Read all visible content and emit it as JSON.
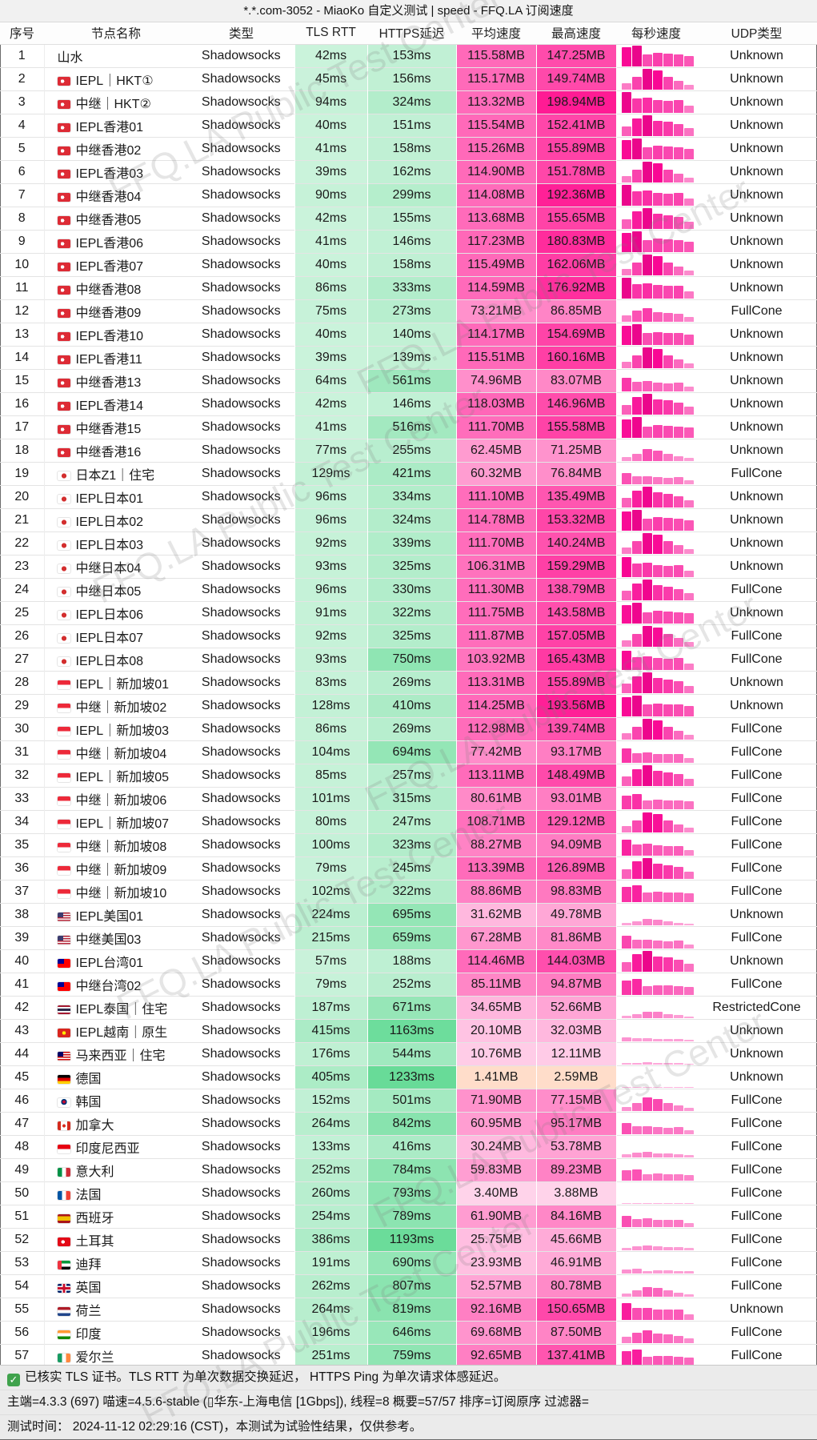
{
  "window": {
    "title": "*.*.com-3052 - MiaoKo 自定义测试 | speed - FFQ.LA 订阅速度"
  },
  "watermark": {
    "text": "FFQ.LA Public Test Center"
  },
  "table": {
    "headers": [
      "序号",
      "节点名称",
      "类型",
      "TLS RTT",
      "HTTPS延迟",
      "平均速度",
      "最高速度",
      "每秒速度",
      "UDP类型"
    ],
    "rows": [
      {
        "num": "1",
        "flag": "",
        "name": "山水",
        "type": "Shadowsocks",
        "tls": "42ms",
        "https": "153ms",
        "avg": "115.58MB",
        "max": "147.25MB",
        "udp": "Unknown"
      },
      {
        "num": "2",
        "flag": "hk",
        "name": "IEPL｜HKT①",
        "type": "Shadowsocks",
        "tls": "45ms",
        "https": "156ms",
        "avg": "115.17MB",
        "max": "149.74MB",
        "udp": "Unknown"
      },
      {
        "num": "3",
        "flag": "hk",
        "name": "中继｜HKT②",
        "type": "Shadowsocks",
        "tls": "94ms",
        "https": "324ms",
        "avg": "113.32MB",
        "max": "198.94MB",
        "udp": "Unknown"
      },
      {
        "num": "4",
        "flag": "hk",
        "name": "IEPL香港01",
        "type": "Shadowsocks",
        "tls": "40ms",
        "https": "151ms",
        "avg": "115.54MB",
        "max": "152.41MB",
        "udp": "Unknown"
      },
      {
        "num": "5",
        "flag": "hk",
        "name": "中继香港02",
        "type": "Shadowsocks",
        "tls": "41ms",
        "https": "158ms",
        "avg": "115.26MB",
        "max": "155.89MB",
        "udp": "Unknown"
      },
      {
        "num": "6",
        "flag": "hk",
        "name": "IEPL香港03",
        "type": "Shadowsocks",
        "tls": "39ms",
        "https": "162ms",
        "avg": "114.90MB",
        "max": "151.78MB",
        "udp": "Unknown"
      },
      {
        "num": "7",
        "flag": "hk",
        "name": "中继香港04",
        "type": "Shadowsocks",
        "tls": "90ms",
        "https": "299ms",
        "avg": "114.08MB",
        "max": "192.36MB",
        "udp": "Unknown"
      },
      {
        "num": "8",
        "flag": "hk",
        "name": "中继香港05",
        "type": "Shadowsocks",
        "tls": "42ms",
        "https": "155ms",
        "avg": "113.68MB",
        "max": "155.65MB",
        "udp": "Unknown"
      },
      {
        "num": "9",
        "flag": "hk",
        "name": "IEPL香港06",
        "type": "Shadowsocks",
        "tls": "41ms",
        "https": "146ms",
        "avg": "117.23MB",
        "max": "180.83MB",
        "udp": "Unknown"
      },
      {
        "num": "10",
        "flag": "hk",
        "name": "IEPL香港07",
        "type": "Shadowsocks",
        "tls": "40ms",
        "https": "158ms",
        "avg": "115.49MB",
        "max": "162.06MB",
        "udp": "Unknown"
      },
      {
        "num": "11",
        "flag": "hk",
        "name": "中继香港08",
        "type": "Shadowsocks",
        "tls": "86ms",
        "https": "333ms",
        "avg": "114.59MB",
        "max": "176.92MB",
        "udp": "Unknown"
      },
      {
        "num": "12",
        "flag": "hk",
        "name": "中继香港09",
        "type": "Shadowsocks",
        "tls": "75ms",
        "https": "273ms",
        "avg": "73.21MB",
        "max": "86.85MB",
        "udp": "FullCone"
      },
      {
        "num": "13",
        "flag": "hk",
        "name": "IEPL香港10",
        "type": "Shadowsocks",
        "tls": "40ms",
        "https": "140ms",
        "avg": "114.17MB",
        "max": "154.69MB",
        "udp": "Unknown"
      },
      {
        "num": "14",
        "flag": "hk",
        "name": "IEPL香港11",
        "type": "Shadowsocks",
        "tls": "39ms",
        "https": "139ms",
        "avg": "115.51MB",
        "max": "160.16MB",
        "udp": "Unknown"
      },
      {
        "num": "15",
        "flag": "hk",
        "name": "中继香港13",
        "type": "Shadowsocks",
        "tls": "64ms",
        "https": "561ms",
        "avg": "74.96MB",
        "max": "83.07MB",
        "udp": "Unknown"
      },
      {
        "num": "16",
        "flag": "hk",
        "name": "IEPL香港14",
        "type": "Shadowsocks",
        "tls": "42ms",
        "https": "146ms",
        "avg": "118.03MB",
        "max": "146.96MB",
        "udp": "Unknown"
      },
      {
        "num": "17",
        "flag": "hk",
        "name": "中继香港15",
        "type": "Shadowsocks",
        "tls": "41ms",
        "https": "516ms",
        "avg": "111.70MB",
        "max": "155.58MB",
        "udp": "Unknown"
      },
      {
        "num": "18",
        "flag": "hk",
        "name": "中继香港16",
        "type": "Shadowsocks",
        "tls": "77ms",
        "https": "255ms",
        "avg": "62.45MB",
        "max": "71.25MB",
        "udp": "Unknown"
      },
      {
        "num": "19",
        "flag": "jp",
        "name": "日本Z1｜住宅",
        "type": "Shadowsocks",
        "tls": "129ms",
        "https": "421ms",
        "avg": "60.32MB",
        "max": "76.84MB",
        "udp": "FullCone"
      },
      {
        "num": "20",
        "flag": "jp",
        "name": "IEPL日本01",
        "type": "Shadowsocks",
        "tls": "96ms",
        "https": "334ms",
        "avg": "111.10MB",
        "max": "135.49MB",
        "udp": "Unknown"
      },
      {
        "num": "21",
        "flag": "jp",
        "name": "IEPL日本02",
        "type": "Shadowsocks",
        "tls": "96ms",
        "https": "324ms",
        "avg": "114.78MB",
        "max": "153.32MB",
        "udp": "Unknown"
      },
      {
        "num": "22",
        "flag": "jp",
        "name": "IEPL日本03",
        "type": "Shadowsocks",
        "tls": "92ms",
        "https": "339ms",
        "avg": "111.70MB",
        "max": "140.24MB",
        "udp": "Unknown"
      },
      {
        "num": "23",
        "flag": "jp",
        "name": "中继日本04",
        "type": "Shadowsocks",
        "tls": "93ms",
        "https": "325ms",
        "avg": "106.31MB",
        "max": "159.29MB",
        "udp": "Unknown"
      },
      {
        "num": "24",
        "flag": "jp",
        "name": "中继日本05",
        "type": "Shadowsocks",
        "tls": "96ms",
        "https": "330ms",
        "avg": "111.30MB",
        "max": "138.79MB",
        "udp": "FullCone"
      },
      {
        "num": "25",
        "flag": "jp",
        "name": "IEPL日本06",
        "type": "Shadowsocks",
        "tls": "91ms",
        "https": "322ms",
        "avg": "111.75MB",
        "max": "143.58MB",
        "udp": "Unknown"
      },
      {
        "num": "26",
        "flag": "jp",
        "name": "IEPL日本07",
        "type": "Shadowsocks",
        "tls": "92ms",
        "https": "325ms",
        "avg": "111.87MB",
        "max": "157.05MB",
        "udp": "FullCone"
      },
      {
        "num": "27",
        "flag": "jp",
        "name": "IEPL日本08",
        "type": "Shadowsocks",
        "tls": "93ms",
        "https": "750ms",
        "avg": "103.92MB",
        "max": "165.43MB",
        "udp": "FullCone"
      },
      {
        "num": "28",
        "flag": "sg",
        "name": "IEPL｜新加坡01",
        "type": "Shadowsocks",
        "tls": "83ms",
        "https": "269ms",
        "avg": "113.31MB",
        "max": "155.89MB",
        "udp": "Unknown"
      },
      {
        "num": "29",
        "flag": "sg",
        "name": "中继｜新加坡02",
        "type": "Shadowsocks",
        "tls": "128ms",
        "https": "410ms",
        "avg": "114.25MB",
        "max": "193.56MB",
        "udp": "Unknown"
      },
      {
        "num": "30",
        "flag": "sg",
        "name": "IEPL｜新加坡03",
        "type": "Shadowsocks",
        "tls": "86ms",
        "https": "269ms",
        "avg": "112.98MB",
        "max": "139.74MB",
        "udp": "FullCone"
      },
      {
        "num": "31",
        "flag": "sg",
        "name": "中继｜新加坡04",
        "type": "Shadowsocks",
        "tls": "104ms",
        "https": "694ms",
        "avg": "77.42MB",
        "max": "93.17MB",
        "udp": "FullCone"
      },
      {
        "num": "32",
        "flag": "sg",
        "name": "IEPL｜新加坡05",
        "type": "Shadowsocks",
        "tls": "85ms",
        "https": "257ms",
        "avg": "113.11MB",
        "max": "148.49MB",
        "udp": "FullCone"
      },
      {
        "num": "33",
        "flag": "sg",
        "name": "中继｜新加坡06",
        "type": "Shadowsocks",
        "tls": "101ms",
        "https": "315ms",
        "avg": "80.61MB",
        "max": "93.01MB",
        "udp": "FullCone"
      },
      {
        "num": "34",
        "flag": "sg",
        "name": "IEPL｜新加坡07",
        "type": "Shadowsocks",
        "tls": "80ms",
        "https": "247ms",
        "avg": "108.71MB",
        "max": "129.12MB",
        "udp": "FullCone"
      },
      {
        "num": "35",
        "flag": "sg",
        "name": "中继｜新加坡08",
        "type": "Shadowsocks",
        "tls": "100ms",
        "https": "323ms",
        "avg": "88.27MB",
        "max": "94.09MB",
        "udp": "FullCone"
      },
      {
        "num": "36",
        "flag": "sg",
        "name": "中继｜新加坡09",
        "type": "Shadowsocks",
        "tls": "79ms",
        "https": "245ms",
        "avg": "113.39MB",
        "max": "126.89MB",
        "udp": "FullCone"
      },
      {
        "num": "37",
        "flag": "sg",
        "name": "中继｜新加坡10",
        "type": "Shadowsocks",
        "tls": "102ms",
        "https": "322ms",
        "avg": "88.86MB",
        "max": "98.83MB",
        "udp": "FullCone"
      },
      {
        "num": "38",
        "flag": "us",
        "name": "IEPL美国01",
        "type": "Shadowsocks",
        "tls": "224ms",
        "https": "695ms",
        "avg": "31.62MB",
        "max": "49.78MB",
        "udp": "Unknown"
      },
      {
        "num": "39",
        "flag": "us",
        "name": "中继美国03",
        "type": "Shadowsocks",
        "tls": "215ms",
        "https": "659ms",
        "avg": "67.28MB",
        "max": "81.86MB",
        "udp": "FullCone"
      },
      {
        "num": "40",
        "flag": "tw",
        "name": "IEPL台湾01",
        "type": "Shadowsocks",
        "tls": "57ms",
        "https": "188ms",
        "avg": "114.46MB",
        "max": "144.03MB",
        "udp": "Unknown"
      },
      {
        "num": "41",
        "flag": "tw",
        "name": "中继台湾02",
        "type": "Shadowsocks",
        "tls": "79ms",
        "https": "252ms",
        "avg": "85.11MB",
        "max": "94.87MB",
        "udp": "FullCone"
      },
      {
        "num": "42",
        "flag": "th",
        "name": "IEPL泰国｜住宅",
        "type": "Shadowsocks",
        "tls": "187ms",
        "https": "671ms",
        "avg": "34.65MB",
        "max": "52.66MB",
        "udp": "RestrictedCone"
      },
      {
        "num": "43",
        "flag": "vn",
        "name": "IEPL越南｜原生",
        "type": "Shadowsocks",
        "tls": "415ms",
        "https": "1163ms",
        "avg": "20.10MB",
        "max": "32.03MB",
        "udp": "Unknown"
      },
      {
        "num": "44",
        "flag": "my",
        "name": "马来西亚｜住宅",
        "type": "Shadowsocks",
        "tls": "176ms",
        "https": "544ms",
        "avg": "10.76MB",
        "max": "12.11MB",
        "udp": "Unknown"
      },
      {
        "num": "45",
        "flag": "de",
        "name": "德国",
        "type": "Shadowsocks",
        "tls": "405ms",
        "https": "1233ms",
        "avg": "1.41MB",
        "max": "2.59MB",
        "udp": "Unknown"
      },
      {
        "num": "46",
        "flag": "kr",
        "name": "韩国",
        "type": "Shadowsocks",
        "tls": "152ms",
        "https": "501ms",
        "avg": "71.90MB",
        "max": "77.15MB",
        "udp": "FullCone"
      },
      {
        "num": "47",
        "flag": "ca",
        "name": "加拿大",
        "type": "Shadowsocks",
        "tls": "264ms",
        "https": "842ms",
        "avg": "60.95MB",
        "max": "95.17MB",
        "udp": "FullCone"
      },
      {
        "num": "48",
        "flag": "id",
        "name": "印度尼西亚",
        "type": "Shadowsocks",
        "tls": "133ms",
        "https": "416ms",
        "avg": "30.24MB",
        "max": "53.78MB",
        "udp": "FullCone"
      },
      {
        "num": "49",
        "flag": "it",
        "name": "意大利",
        "type": "Shadowsocks",
        "tls": "252ms",
        "https": "784ms",
        "avg": "59.83MB",
        "max": "89.23MB",
        "udp": "FullCone"
      },
      {
        "num": "50",
        "flag": "fr",
        "name": "法国",
        "type": "Shadowsocks",
        "tls": "260ms",
        "https": "793ms",
        "avg": "3.40MB",
        "max": "3.88MB",
        "udp": "FullCone"
      },
      {
        "num": "51",
        "flag": "es",
        "name": "西班牙",
        "type": "Shadowsocks",
        "tls": "254ms",
        "https": "789ms",
        "avg": "61.90MB",
        "max": "84.16MB",
        "udp": "FullCone"
      },
      {
        "num": "52",
        "flag": "tr",
        "name": "土耳其",
        "type": "Shadowsocks",
        "tls": "386ms",
        "https": "1193ms",
        "avg": "25.75MB",
        "max": "45.66MB",
        "udp": "FullCone"
      },
      {
        "num": "53",
        "flag": "ae",
        "name": "迪拜",
        "type": "Shadowsocks",
        "tls": "191ms",
        "https": "690ms",
        "avg": "23.93MB",
        "max": "46.91MB",
        "udp": "FullCone"
      },
      {
        "num": "54",
        "flag": "gb",
        "name": "英国",
        "type": "Shadowsocks",
        "tls": "262ms",
        "https": "807ms",
        "avg": "52.57MB",
        "max": "80.78MB",
        "udp": "FullCone"
      },
      {
        "num": "55",
        "flag": "nl",
        "name": "荷兰",
        "type": "Shadowsocks",
        "tls": "264ms",
        "https": "819ms",
        "avg": "92.16MB",
        "max": "150.65MB",
        "udp": "Unknown"
      },
      {
        "num": "56",
        "flag": "in",
        "name": "印度",
        "type": "Shadowsocks",
        "tls": "196ms",
        "https": "646ms",
        "avg": "69.68MB",
        "max": "87.50MB",
        "udp": "FullCone"
      },
      {
        "num": "57",
        "flag": "ie",
        "name": "爱尔兰",
        "type": "Shadowsocks",
        "tls": "251ms",
        "https": "759ms",
        "avg": "92.65MB",
        "max": "137.41MB",
        "udp": "FullCone"
      }
    ]
  },
  "footer": {
    "line1": "已核实 TLS 证书。TLS RTT 为单次数据交换延迟， HTTPS Ping 为单次请求体感延迟。",
    "line2": "主端=4.3.3 (697) 喵速=4.5.6-stable (▯华东-上海电信 [1Gbps]), 线程=8 概要=57/57 排序=订阅原序 过滤器=",
    "line3": "测试时间： 2024-11-12 02:29:16 (CST)，本测试为试验性结果，仅供参考。"
  },
  "colors": {
    "latency_green_light": "#c9f6dc",
    "latency_green_dark": "#6fcb98",
    "speed_pink_light": "#ffd6ea",
    "speed_pink_deep": "#ff1b93",
    "speed_peach_low": "#ffddca",
    "check_green": "#3fa24c"
  }
}
